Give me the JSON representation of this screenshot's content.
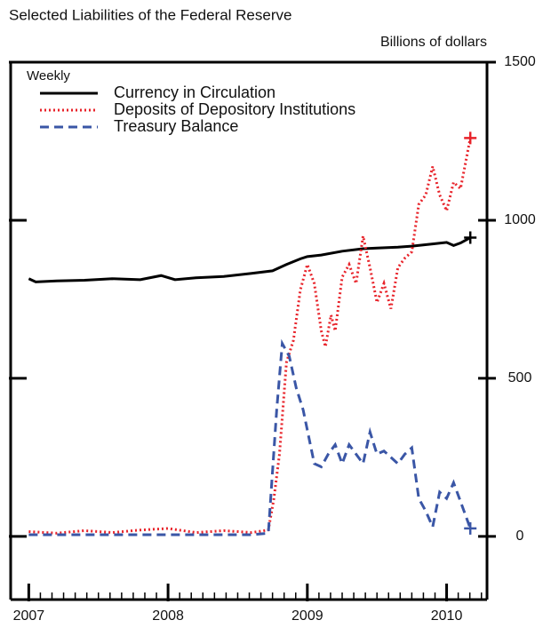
{
  "chart_data": {
    "type": "line",
    "title": "Selected Liabilities of the Federal Reserve",
    "y_axis_label": "Billions of dollars",
    "legend_title": "Weekly",
    "xlim": [
      2006.87,
      2010.29
    ],
    "xticks": [
      2007,
      2008,
      2009,
      2010
    ],
    "ylim": [
      -200,
      1500
    ],
    "yticks": [
      0,
      500,
      1000,
      1500
    ],
    "series": [
      {
        "name": "Currency in Circulation",
        "color": "#000000",
        "style": "solid",
        "x": [
          2007.0,
          2007.05,
          2007.2,
          2007.4,
          2007.6,
          2007.8,
          2007.95,
          2008.05,
          2008.2,
          2008.4,
          2008.6,
          2008.75,
          2008.85,
          2008.95,
          2009.0,
          2009.1,
          2009.25,
          2009.4,
          2009.5,
          2009.65,
          2009.75,
          2009.9,
          2010.0,
          2010.05,
          2010.1,
          2010.17
        ],
        "values": [
          815,
          805,
          808,
          810,
          815,
          812,
          825,
          812,
          818,
          822,
          832,
          840,
          860,
          878,
          885,
          890,
          902,
          910,
          912,
          915,
          918,
          925,
          930,
          920,
          928,
          945
        ]
      },
      {
        "name": "Deposits of Depository Institutions",
        "color": "#e8232a",
        "style": "dotted",
        "x": [
          2007.0,
          2007.2,
          2007.4,
          2007.6,
          2007.8,
          2008.0,
          2008.2,
          2008.4,
          2008.6,
          2008.72,
          2008.76,
          2008.8,
          2008.85,
          2008.9,
          2008.95,
          2009.0,
          2009.05,
          2009.1,
          2009.13,
          2009.17,
          2009.2,
          2009.25,
          2009.3,
          2009.35,
          2009.4,
          2009.45,
          2009.5,
          2009.55,
          2009.6,
          2009.65,
          2009.7,
          2009.75,
          2009.8,
          2009.85,
          2009.9,
          2009.95,
          2010.0,
          2010.05,
          2010.1,
          2010.17
        ],
        "values": [
          15,
          10,
          18,
          12,
          20,
          25,
          12,
          18,
          12,
          20,
          120,
          260,
          550,
          620,
          780,
          860,
          800,
          650,
          600,
          700,
          650,
          820,
          860,
          800,
          950,
          850,
          740,
          800,
          720,
          850,
          880,
          900,
          1050,
          1080,
          1170,
          1080,
          1030,
          1120,
          1100,
          1260
        ]
      },
      {
        "name": "Treasury Balance",
        "color": "#3a56a6",
        "style": "dashed",
        "x": [
          2007.0,
          2007.3,
          2007.6,
          2008.0,
          2008.3,
          2008.6,
          2008.72,
          2008.78,
          2008.82,
          2008.87,
          2008.92,
          2008.97,
          2009.05,
          2009.1,
          2009.15,
          2009.2,
          2009.25,
          2009.3,
          2009.4,
          2009.45,
          2009.5,
          2009.55,
          2009.65,
          2009.7,
          2009.75,
          2009.8,
          2009.85,
          2009.9,
          2009.95,
          2010.0,
          2010.05,
          2010.1,
          2010.17
        ],
        "values": [
          5,
          5,
          5,
          5,
          5,
          5,
          10,
          400,
          610,
          570,
          470,
          400,
          230,
          220,
          260,
          290,
          230,
          290,
          230,
          330,
          260,
          270,
          230,
          260,
          280,
          120,
          80,
          30,
          140,
          120,
          170,
          110,
          25
        ]
      }
    ]
  }
}
